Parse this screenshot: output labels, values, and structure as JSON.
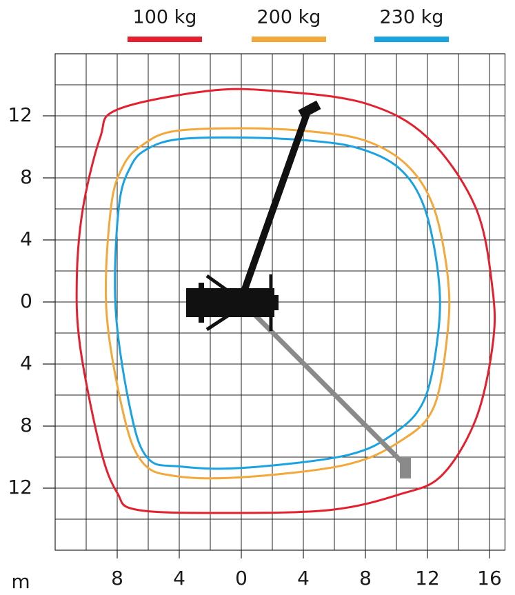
{
  "chart_data": {
    "type": "envelope",
    "axis_unit": "m",
    "xlim": [
      -12,
      17
    ],
    "ylim": [
      -16,
      16
    ],
    "xticks": [
      {
        "value": -8,
        "label": "8"
      },
      {
        "value": -4,
        "label": "4"
      },
      0,
      4,
      8,
      12,
      16
    ],
    "yticks": [
      12,
      8,
      4,
      0,
      {
        "value": -4,
        "label": "4"
      },
      {
        "value": -8,
        "label": "8"
      },
      {
        "value": -12,
        "label": "12"
      }
    ],
    "xgrid": [
      -10,
      -8,
      -6,
      -4,
      -2,
      0,
      2,
      4,
      6,
      8,
      10,
      12,
      14,
      16
    ],
    "ygrid": [
      -14,
      -12,
      -10,
      -8,
      -6,
      -4,
      -2,
      0,
      2,
      4,
      6,
      8,
      10,
      12,
      14
    ],
    "grid": true,
    "series": [
      {
        "name": "100 kg",
        "color": "#e4202e",
        "x": [
          -8,
          -2.2,
          2.2,
          8,
          12,
          15.1,
          16.2,
          16.2,
          15.1,
          12.9,
          10.2,
          5.8,
          -0.9,
          -6.7,
          -8,
          -9.1,
          -10.4,
          -10.6,
          -10.2,
          -9.1
        ],
        "y": [
          12.4,
          13.6,
          13.6,
          12.8,
          10.6,
          6.1,
          0.8,
          -2.8,
          -7.6,
          -11.2,
          -12.4,
          -13.4,
          -13.6,
          -13.4,
          -12.3,
          -9.4,
          -2.8,
          1.7,
          6.1,
          10.6
        ]
      },
      {
        "name": "200 kg",
        "color": "#f3a83b",
        "x": [
          -6.4,
          -4.4,
          0,
          4.4,
          8,
          10.7,
          12.4,
          13.3,
          13.3,
          12.4,
          10.2,
          6.7,
          0,
          -4.4,
          -6.4,
          -7.6,
          -8.7,
          -8.4,
          -7.6
        ],
        "y": [
          10.1,
          11,
          11.2,
          11,
          10.4,
          8.8,
          6.1,
          1.7,
          -1.9,
          -6.8,
          -9,
          -10.5,
          -11.3,
          -11.2,
          -10.3,
          -7.2,
          -0.5,
          6.1,
          8.8
        ]
      },
      {
        "name": "230 kg",
        "color": "#1aa3e0",
        "x": [
          -6,
          -4,
          0,
          4.4,
          7.6,
          10.2,
          11.8,
          12.7,
          12.7,
          11.8,
          9.8,
          6.7,
          0,
          -4,
          -6,
          -7.1,
          -8.1,
          -7.9,
          -7.1
        ],
        "y": [
          9.9,
          10.5,
          10.6,
          10.4,
          9.9,
          8.6,
          6.1,
          1.7,
          -1.9,
          -6.3,
          -8.5,
          -9.9,
          -10.7,
          -10.6,
          -10.1,
          -7.2,
          -0.5,
          6.1,
          8.8
        ]
      }
    ]
  }
}
